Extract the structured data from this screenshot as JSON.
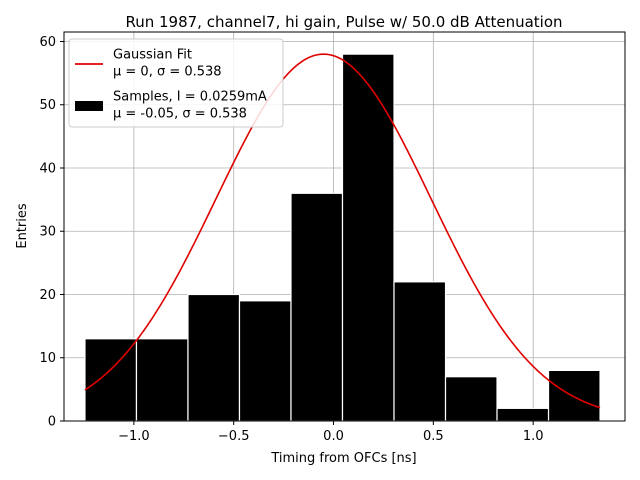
{
  "chart_data": {
    "type": "bar",
    "title": "Run 1987, channel7, hi gain, Pulse w/ 50.0 dB Attenuation",
    "xlabel": "Timing from OFCs [ns]",
    "ylabel": "Entries",
    "xlim": [
      -1.35,
      1.46
    ],
    "ylim": [
      0,
      61.5
    ],
    "x_ticks": [
      -1.0,
      -0.5,
      0.0,
      0.5,
      1.0
    ],
    "x_tick_labels": [
      "−1.0",
      "−0.5",
      "0.0",
      "0.5",
      "1.0"
    ],
    "y_ticks": [
      0,
      10,
      20,
      30,
      40,
      50,
      60
    ],
    "y_tick_labels": [
      "0",
      "10",
      "20",
      "30",
      "40",
      "50",
      "60"
    ],
    "grid": true,
    "legend_position": "top-left",
    "bins": [
      {
        "x0": -1.245,
        "x1": -0.987,
        "value": 13
      },
      {
        "x0": -0.987,
        "x1": -0.729,
        "value": 13
      },
      {
        "x0": -0.729,
        "x1": -0.471,
        "value": 20
      },
      {
        "x0": -0.471,
        "x1": -0.213,
        "value": 19
      },
      {
        "x0": -0.213,
        "x1": 0.045,
        "value": 36
      },
      {
        "x0": 0.045,
        "x1": 0.303,
        "value": 58
      },
      {
        "x0": 0.303,
        "x1": 0.561,
        "value": 22
      },
      {
        "x0": 0.561,
        "x1": 0.819,
        "value": 7
      },
      {
        "x0": 0.819,
        "x1": 1.077,
        "value": 2
      },
      {
        "x0": 1.077,
        "x1": 1.335,
        "value": 8
      }
    ],
    "bar_color": "#000000",
    "bar_edge_color": "#ffffff",
    "fit": {
      "mu": -0.05,
      "sigma": 0.538,
      "amplitude": 58,
      "x_range": [
        -1.245,
        1.335
      ],
      "color": "#e00000"
    },
    "legend": [
      {
        "kind": "line",
        "color": "#e00000",
        "lines": [
          "Gaussian Fit",
          "μ = 0, σ = 0.538"
        ]
      },
      {
        "kind": "patch",
        "color": "#000000",
        "lines": [
          "Samples, I = 0.0259mA",
          "μ = -0.05, σ = 0.538"
        ]
      }
    ]
  }
}
